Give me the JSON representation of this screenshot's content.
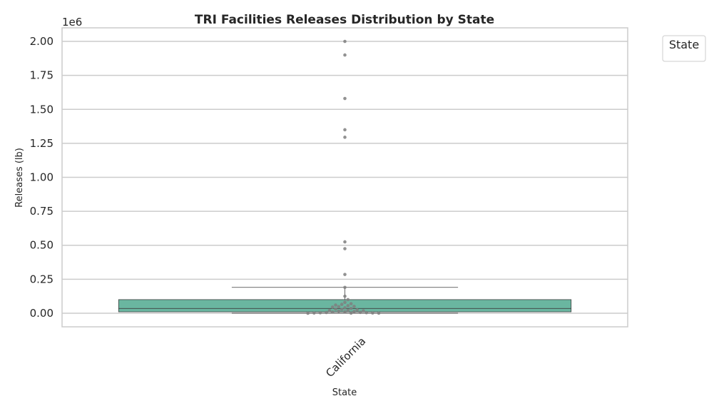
{
  "chart_data": {
    "type": "box",
    "title": "TRI Facilities Releases Distribution by State",
    "xlabel": "State",
    "ylabel": "Releases (lb)",
    "y_offset_label": "1e6",
    "ylim": [
      -100000,
      2100000
    ],
    "yticks": [
      0,
      250000,
      500000,
      750000,
      1000000,
      1250000,
      1500000,
      1750000,
      2000000
    ],
    "ytick_labels": [
      "0.00",
      "0.25",
      "0.50",
      "0.75",
      "1.00",
      "1.25",
      "1.50",
      "1.75",
      "2.00"
    ],
    "categories": [
      "California"
    ],
    "grid": true,
    "legend": {
      "title": "State",
      "placement": "top-right outside"
    },
    "box": {
      "category": "California",
      "whisker_low": 0,
      "q1": 10000,
      "median": 35000,
      "q3": 100000,
      "whisker_high": 190000,
      "color": "#6ab6a0"
    },
    "points": [
      2000000,
      1900000,
      1580000,
      1350000,
      1295000,
      525000,
      475000,
      285000,
      190000,
      125000,
      100000,
      80000,
      70000,
      65000,
      60000,
      55000,
      50000,
      48000,
      45000,
      40000,
      35000,
      30000,
      28000,
      25000,
      22000,
      20000,
      18000,
      15000,
      12000,
      10000,
      8000,
      6000,
      5000,
      4000,
      3000,
      2000,
      1500,
      1000,
      500,
      0
    ],
    "point_color": "#7f7f7f"
  }
}
